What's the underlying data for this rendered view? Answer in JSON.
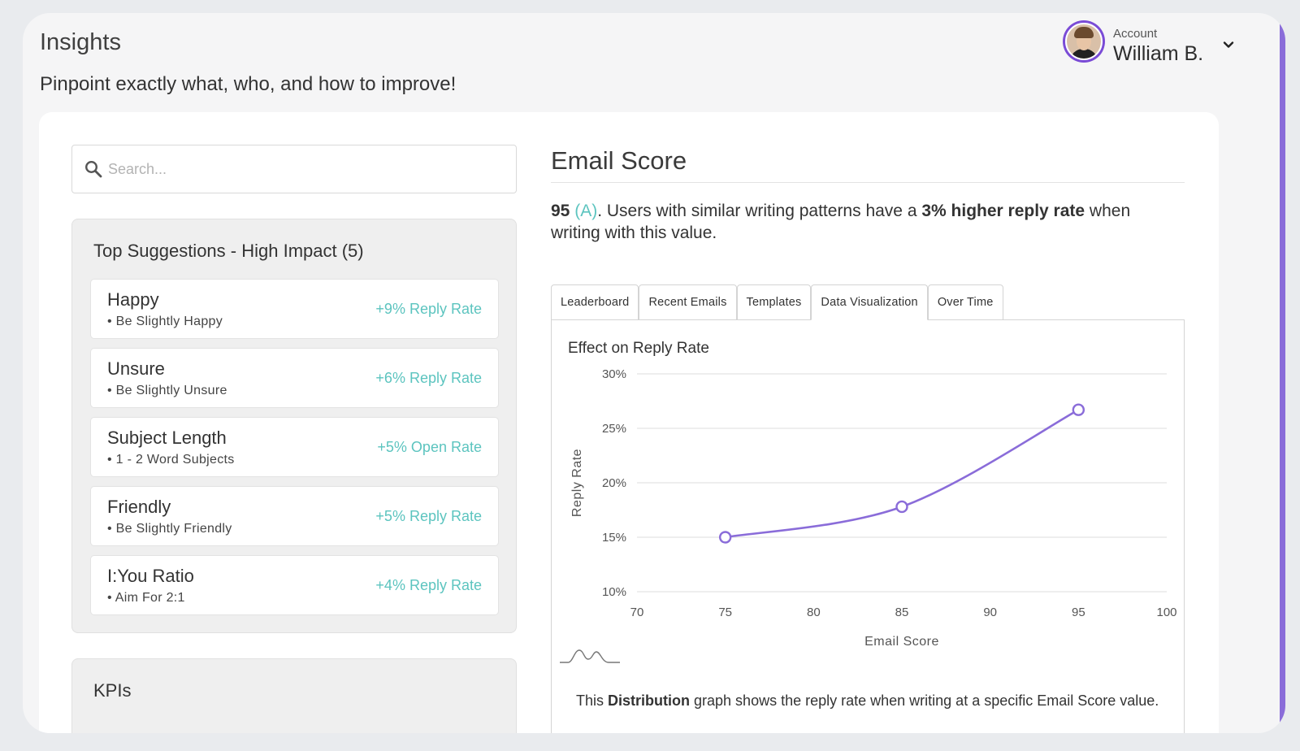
{
  "header": {
    "title": "Insights",
    "subtitle": "Pinpoint exactly what, who, and how to improve!"
  },
  "account": {
    "label": "Account",
    "name": "William B.",
    "icon": "chevron-down-icon"
  },
  "search": {
    "placeholder": "Search...",
    "value": ""
  },
  "suggestions": {
    "title": "Top Suggestions - High Impact (5)",
    "items": [
      {
        "name": "Happy",
        "detail": "• Be Slightly Happy",
        "impact": "+9% Reply Rate"
      },
      {
        "name": "Unsure",
        "detail": "• Be Slightly Unsure",
        "impact": "+6% Reply Rate"
      },
      {
        "name": "Subject Length",
        "detail": "• 1 - 2 Word Subjects",
        "impact": "+5% Open Rate"
      },
      {
        "name": "Friendly",
        "detail": "• Be Slightly Friendly",
        "impact": "+5% Reply Rate"
      },
      {
        "name": "I:You Ratio",
        "detail": "• Aim For 2:1",
        "impact": "+4% Reply Rate"
      }
    ]
  },
  "kpis": {
    "title": "KPIs"
  },
  "score": {
    "title": "Email Score",
    "value": "95",
    "grade": "(A)",
    "text_before": ". Users with similar writing patterns have a ",
    "highlight": "3% higher reply rate",
    "text_after": " when writing with this value."
  },
  "tabs": [
    {
      "label": "Leaderboard",
      "active": false
    },
    {
      "label": "Recent Emails",
      "active": false
    },
    {
      "label": "Templates",
      "active": false
    },
    {
      "label": "Data Visualization",
      "active": true
    },
    {
      "label": "Over Time",
      "active": false
    }
  ],
  "colors": {
    "accent": "#5cc4bf",
    "line": "#8a6cd9",
    "edge": "#8a6cd9"
  },
  "chart_data": {
    "type": "line",
    "title": "Effect on Reply Rate",
    "xlabel": "Email Score",
    "ylabel": "Reply Rate",
    "x": [
      75,
      85,
      95
    ],
    "series": [
      {
        "values": [
          15,
          17.8,
          26.7
        ]
      }
    ],
    "xlim": [
      70,
      100
    ],
    "ylim": [
      10,
      30
    ],
    "x_ticks": [
      "70",
      "75",
      "80",
      "85",
      "90",
      "95",
      "100"
    ],
    "y_ticks": [
      "30%",
      "25%",
      "20%",
      "15%",
      "10%"
    ],
    "grid": true
  },
  "caption": {
    "before": "This ",
    "bold": "Distribution",
    "after": " graph shows the reply rate when writing at a specific Email Score value."
  }
}
